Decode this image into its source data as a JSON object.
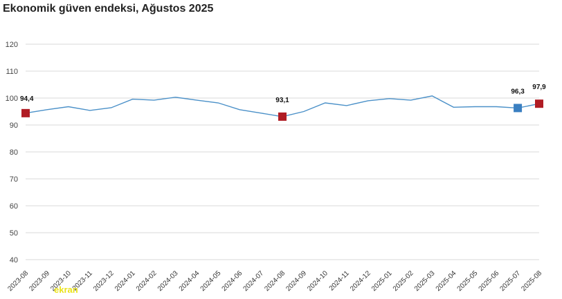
{
  "chart_data": {
    "type": "line",
    "title": "Ekonomik güven endeksi, Ağustos 2025",
    "categories": [
      "2023-08",
      "2023-09",
      "2023-10",
      "2023-11",
      "2023-12",
      "2024-01",
      "2024-02",
      "2024-03",
      "2024-04",
      "2024-05",
      "2024-06",
      "2024-07",
      "2024-08",
      "2024-09",
      "2024-10",
      "2024-11",
      "2024-12",
      "2025-01",
      "2025-02",
      "2025-03",
      "2025-04",
      "2025-05",
      "2025-06",
      "2025-07",
      "2025-08"
    ],
    "series": [
      {
        "values": [
          94.4,
          95.7,
          96.8,
          95.4,
          96.4,
          99.6,
          99.2,
          100.3,
          99.2,
          98.2,
          95.7,
          94.4,
          93.1,
          95.0,
          98.2,
          97.2,
          99.0,
          99.8,
          99.2,
          100.8,
          96.6,
          96.8,
          96.8,
          96.3,
          97.9
        ],
        "color": "#4a90c8"
      }
    ],
    "highlighted": [
      {
        "category": "2023-08",
        "label": "94,4",
        "color": "#b01c24"
      },
      {
        "category": "2024-08",
        "label": "93,1",
        "color": "#b01c24"
      },
      {
        "category": "2025-07",
        "label": "96,3",
        "color": "#3a7fc1"
      },
      {
        "category": "2025-08",
        "label": "97,9",
        "color": "#b01c24"
      }
    ],
    "ylim": [
      40,
      120
    ],
    "yticks": [
      40,
      50,
      60,
      70,
      80,
      90,
      100,
      110,
      120
    ],
    "grid": "horizontal",
    "gridColor": "#d9d9d9",
    "xlabel": "",
    "ylabel": ""
  },
  "watermark": "ekran"
}
